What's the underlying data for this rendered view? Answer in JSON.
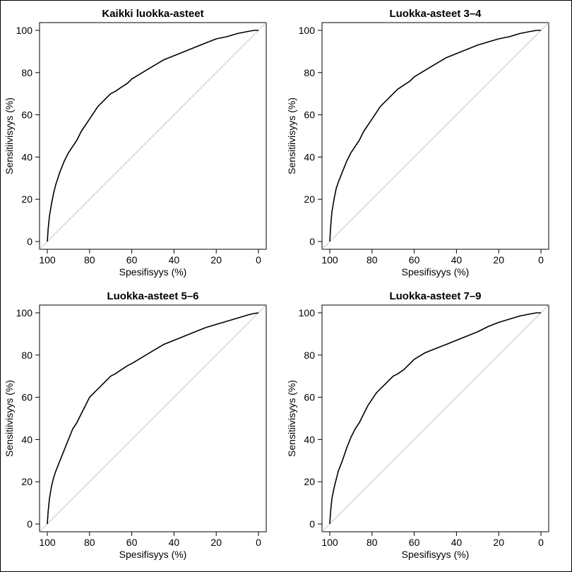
{
  "chart_data": [
    {
      "type": "line",
      "title": "Kaikki luokka-asteet",
      "xlabel": "Spesifisyys (%)",
      "ylabel": "Sensitiivisyys (%)",
      "xlim": [
        100,
        0
      ],
      "ylim": [
        0,
        100
      ],
      "xticks": [
        100,
        80,
        60,
        40,
        20,
        0
      ],
      "yticks": [
        0,
        20,
        40,
        60,
        80,
        100
      ],
      "reference_line": true,
      "x": [
        100,
        99.6,
        99,
        98,
        97,
        96,
        94,
        92,
        90,
        88,
        86,
        84,
        82,
        80,
        78,
        76,
        74,
        72,
        70,
        68,
        65,
        62,
        60,
        55,
        50,
        45,
        40,
        35,
        30,
        25,
        20,
        15,
        10,
        5,
        2,
        0
      ],
      "y": [
        0,
        6,
        12,
        18,
        23,
        27,
        33,
        38,
        42,
        45,
        48,
        52,
        55,
        58,
        61,
        64,
        66,
        68,
        70,
        71,
        73,
        75,
        77,
        80,
        83,
        86,
        88,
        90,
        92,
        94,
        96,
        97,
        98.5,
        99.5,
        100,
        100
      ]
    },
    {
      "type": "line",
      "title": "Luokka-asteet 3–4",
      "xlabel": "Spesifisyys (%)",
      "ylabel": "Sensitiivisyys (%)",
      "xlim": [
        100,
        0
      ],
      "ylim": [
        0,
        100
      ],
      "xticks": [
        100,
        80,
        60,
        40,
        20,
        0
      ],
      "yticks": [
        0,
        20,
        40,
        60,
        80,
        100
      ],
      "reference_line": true,
      "x": [
        100,
        99.6,
        99,
        98,
        97,
        96,
        94,
        92,
        90,
        88,
        86,
        84,
        82,
        80,
        78,
        76,
        74,
        72,
        70,
        68,
        65,
        62,
        60,
        55,
        50,
        45,
        40,
        35,
        30,
        25,
        20,
        15,
        10,
        5,
        2,
        0
      ],
      "y": [
        0,
        7,
        14,
        20,
        25,
        28,
        33,
        38,
        42,
        45,
        48,
        52,
        55,
        58,
        61,
        64,
        66,
        68,
        70,
        72,
        74,
        76,
        78,
        81,
        84,
        87,
        89,
        91,
        93,
        94.5,
        96,
        97,
        98.5,
        99.5,
        100,
        100
      ]
    },
    {
      "type": "line",
      "title": "Luokka-asteet 5–6",
      "xlabel": "Spesifisyys (%)",
      "ylabel": "Sensitiivisyys (%)",
      "xlim": [
        100,
        0
      ],
      "ylim": [
        0,
        100
      ],
      "xticks": [
        100,
        80,
        60,
        40,
        20,
        0
      ],
      "yticks": [
        0,
        20,
        40,
        60,
        80,
        100
      ],
      "reference_line": true,
      "x": [
        100,
        99.6,
        99,
        98,
        97,
        96,
        94,
        92,
        90,
        88,
        86,
        84,
        82,
        80,
        78,
        76,
        74,
        72,
        70,
        68,
        65,
        62,
        60,
        55,
        50,
        45,
        40,
        35,
        30,
        25,
        20,
        15,
        10,
        5,
        2,
        0
      ],
      "y": [
        0,
        6,
        12,
        18,
        22,
        25,
        30,
        35,
        40,
        45,
        48,
        52,
        56,
        60,
        62,
        64,
        66,
        68,
        70,
        71,
        73,
        75,
        76,
        79,
        82,
        85,
        87,
        89,
        91,
        93,
        94.5,
        96,
        97.5,
        99,
        99.7,
        100
      ]
    },
    {
      "type": "line",
      "title": "Luokka-asteet 7–9",
      "xlabel": "Spesifisyys (%)",
      "ylabel": "Sensitiivisyys (%)",
      "xlim": [
        100,
        0
      ],
      "ylim": [
        0,
        100
      ],
      "xticks": [
        100,
        80,
        60,
        40,
        20,
        0
      ],
      "yticks": [
        0,
        20,
        40,
        60,
        80,
        100
      ],
      "reference_line": true,
      "x": [
        100,
        99.6,
        99,
        98,
        97,
        96,
        94,
        92,
        90,
        88,
        86,
        84,
        82,
        80,
        78,
        76,
        74,
        72,
        70,
        68,
        65,
        62,
        60,
        55,
        50,
        45,
        40,
        35,
        30,
        25,
        20,
        15,
        10,
        5,
        2,
        0
      ],
      "y": [
        0,
        6,
        12,
        17,
        21,
        25,
        30,
        36,
        41,
        45,
        48,
        52,
        56,
        59,
        62,
        64,
        66,
        68,
        70,
        71,
        73,
        76,
        78,
        81,
        83,
        85,
        87,
        89,
        91,
        93.5,
        95.5,
        97,
        98.5,
        99.5,
        100,
        100
      ]
    }
  ]
}
